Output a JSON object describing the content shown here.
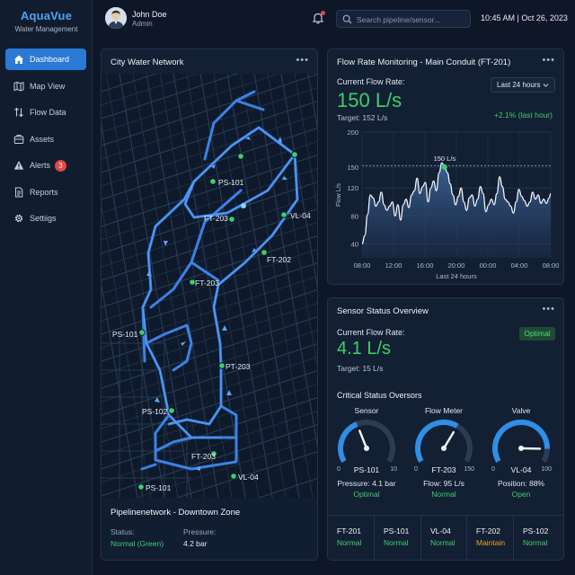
{
  "app": {
    "name": "AquaVue",
    "subtitle": "Water Management"
  },
  "nav": [
    {
      "label": "Dashboard",
      "icon": "home-icon",
      "active": true
    },
    {
      "label": "Map View",
      "icon": "map-icon"
    },
    {
      "label": "Flow Data",
      "icon": "flow-arrows-icon"
    },
    {
      "label": "Assets",
      "icon": "assets-icon"
    },
    {
      "label": "Alerts",
      "icon": "alert-triangle-icon",
      "badge": "3"
    },
    {
      "label": "Reports",
      "icon": "document-icon"
    },
    {
      "label": "Settiigs",
      "icon": "gear-icon"
    }
  ],
  "header": {
    "user_name": "John Doe",
    "user_role": "Admin",
    "search_placeholder": "Search pipeline/sensor...",
    "datetime": "10:45 AM | Oct 26, 2023"
  },
  "map_card": {
    "title": "City Water Network",
    "labels": [
      "PS-101",
      "FT-203",
      "VL-04",
      "FT-202",
      "FT-203",
      "PS-101",
      "PT-203",
      "PS-102",
      "FT-203",
      "VL-04",
      "PS-101"
    ],
    "zone_title": "Pipelinenetwork - Downtown Zone",
    "status_label": "Status:",
    "status_value": "Normal (Green)",
    "pressure_label": "Pressure:",
    "pressure_value": "4.2 bar"
  },
  "flow_card": {
    "title": "Flow Rate Monitoring - Main Conduit (FT-201)",
    "current_label": "Current Flow Rate:",
    "current_value": "150 L/s",
    "target": "Target: 152 L/s",
    "range": "Last 24 hours",
    "change": "+2.1% (last hour)"
  },
  "chart_data": {
    "type": "area",
    "title": "",
    "xlabel": "Last 24 hours",
    "ylabel": "Flow L/s",
    "ylim": [
      20,
      200
    ],
    "yticks": [
      200,
      150,
      120,
      80,
      40
    ],
    "xticks": [
      "08:00",
      "12:00",
      "16:00",
      "20:00",
      "00:00",
      "04:00",
      "08:00"
    ],
    "reference_line": 152,
    "annotation": {
      "label": "150 L/s",
      "x": 21.0,
      "y": 150
    },
    "x": [
      0,
      0.7,
      1.4,
      2.1,
      2.8,
      3.5,
      4.2,
      4.9,
      5.6,
      6.3,
      7.0,
      7.7,
      8.4,
      9.1,
      9.8,
      10.5,
      11.2,
      11.9,
      12.6,
      13.3,
      14.0,
      14.7,
      15.4,
      16.1,
      16.8,
      17.5,
      18.2,
      18.9,
      19.6,
      20.3,
      21.0,
      21.7,
      22.4,
      23.1,
      23.8,
      24.5,
      25.2,
      25.9,
      26.6,
      27.3,
      28.0,
      28.7,
      29.4,
      30.1,
      30.8,
      31.5,
      32.2,
      32.9,
      33.6,
      34.3,
      35.0,
      35.7,
      36.4,
      37.1,
      37.8,
      38.5,
      39.2,
      39.9,
      40.6,
      41.3,
      42.0,
      42.7,
      43.4,
      44.1,
      44.8,
      45.5,
      46.2,
      46.9,
      47.6,
      48.0
    ],
    "series": [
      {
        "values": [
          40,
          52,
          82,
          110,
          106,
          94,
          100,
          114,
          96,
          88,
          94,
          100,
          80,
          96,
          74,
          96,
          104,
          92,
          110,
          116,
          134,
          112,
          122,
          128,
          100,
          120,
          130,
          116,
          142,
          156,
          150,
          142,
          126,
          110,
          96,
          108,
          120,
          100,
          88,
          106,
          110,
          94,
          104,
          122,
          112,
          86,
          96,
          104,
          96,
          112,
          136,
          122,
          104,
          100,
          94,
          84,
          100,
          118,
          108,
          102,
          94,
          100,
          114,
          104,
          110,
          98,
          104,
          98,
          106,
          112
        ]
      }
    ]
  },
  "sensor_card": {
    "title": "Sensor Status Overview",
    "current_label": "Current Flow Rate:",
    "current_value": "4.1 L/s",
    "target": "Target: 15 L/s",
    "badge": "Optimal",
    "section_title": "Critical Status Oversors",
    "gauges": [
      {
        "name": "Sensor",
        "id": "PS-101",
        "min": "0",
        "max": "10",
        "reading": "Pressure: 4.1 bar",
        "status": "Optimal",
        "level": 0.41
      },
      {
        "name": "Flow Meter",
        "id": "FT-203",
        "min": "0",
        "max": "150",
        "reading": "Flow: 95 L/s",
        "status": "Normal",
        "level": 0.63
      },
      {
        "name": "Valve",
        "id": "VL-04",
        "min": "0",
        "max": "100",
        "reading": "Position: 88%",
        "status": "Open",
        "level": 0.88
      }
    ],
    "status_row": [
      {
        "id": "FT-201",
        "status": "Normal",
        "color": "#3fcf6a"
      },
      {
        "id": "PS-101",
        "status": "Normal",
        "color": "#3fcf6a"
      },
      {
        "id": "VL-04",
        "status": "Normal",
        "color": "#3fcf6a"
      },
      {
        "id": "FT-202",
        "status": "Maintain",
        "color": "#e6a224"
      },
      {
        "id": "PS-102",
        "status": "Normal",
        "color": "#3fcf6a"
      }
    ]
  },
  "colors": {
    "accent": "#2b79d4",
    "ok": "#3fcf6a",
    "warn": "#e6a224",
    "alert": "#e04848",
    "pipe": "#3b82e6"
  }
}
